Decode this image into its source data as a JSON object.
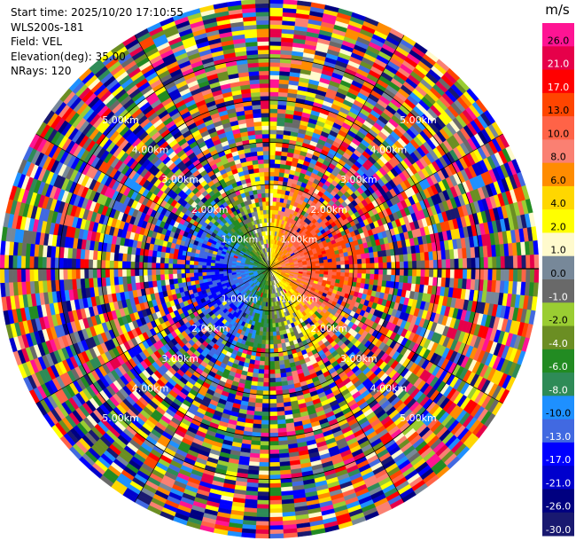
{
  "header": {
    "start_time": "Start time: 2025/10/20 17:10:55",
    "instrument": "WLS200s-181",
    "field": "Field: VEL",
    "elevation": "Elevation(deg): 35.00",
    "nrays": "NRays: 120"
  },
  "chart_data": {
    "type": "heatmap",
    "projection": "polar-ppi",
    "field": "VEL",
    "units": "m/s",
    "nrays": 120,
    "max_range_km": 6.4,
    "range_rings_km": [
      1.0,
      2.0,
      3.0,
      4.0,
      5.0
    ],
    "ring_labels": [
      "1.00km",
      "2.00km",
      "3.00km",
      "4.00km",
      "5.00km"
    ],
    "ring_label_bearings_deg": [
      45,
      135,
      225,
      315
    ],
    "colorbar": {
      "title": "m/s",
      "bins": [
        {
          "label": "26.0",
          "color": "#ff1493"
        },
        {
          "label": "21.0",
          "color": "#e6004a"
        },
        {
          "label": "17.0",
          "color": "#ff0000"
        },
        {
          "label": "13.0",
          "color": "#ff4500"
        },
        {
          "label": "10.0",
          "color": "#ff6347"
        },
        {
          "label": "8.0",
          "color": "#fa8072"
        },
        {
          "label": "6.0",
          "color": "#ff8c00"
        },
        {
          "label": "4.0",
          "color": "#ffd700"
        },
        {
          "label": "2.0",
          "color": "#ffff00"
        },
        {
          "label": "1.0",
          "color": "#fffacd"
        },
        {
          "label": "0.0",
          "color": "#778899"
        },
        {
          "label": "-1.0",
          "color": "#696969"
        },
        {
          "label": "-2.0",
          "color": "#9acd32"
        },
        {
          "label": "-4.0",
          "color": "#6b8e23"
        },
        {
          "label": "-6.0",
          "color": "#228b22"
        },
        {
          "label": "-8.0",
          "color": "#2e8b57"
        },
        {
          "label": "-10.0",
          "color": "#1e90ff"
        },
        {
          "label": "-13.0",
          "color": "#4169e1"
        },
        {
          "label": "-17.0",
          "color": "#0000ff"
        },
        {
          "label": "-21.0",
          "color": "#0000cd"
        },
        {
          "label": "-26.0",
          "color": "#000080"
        },
        {
          "label": "-30.0",
          "color": "#191970"
        }
      ]
    }
  }
}
